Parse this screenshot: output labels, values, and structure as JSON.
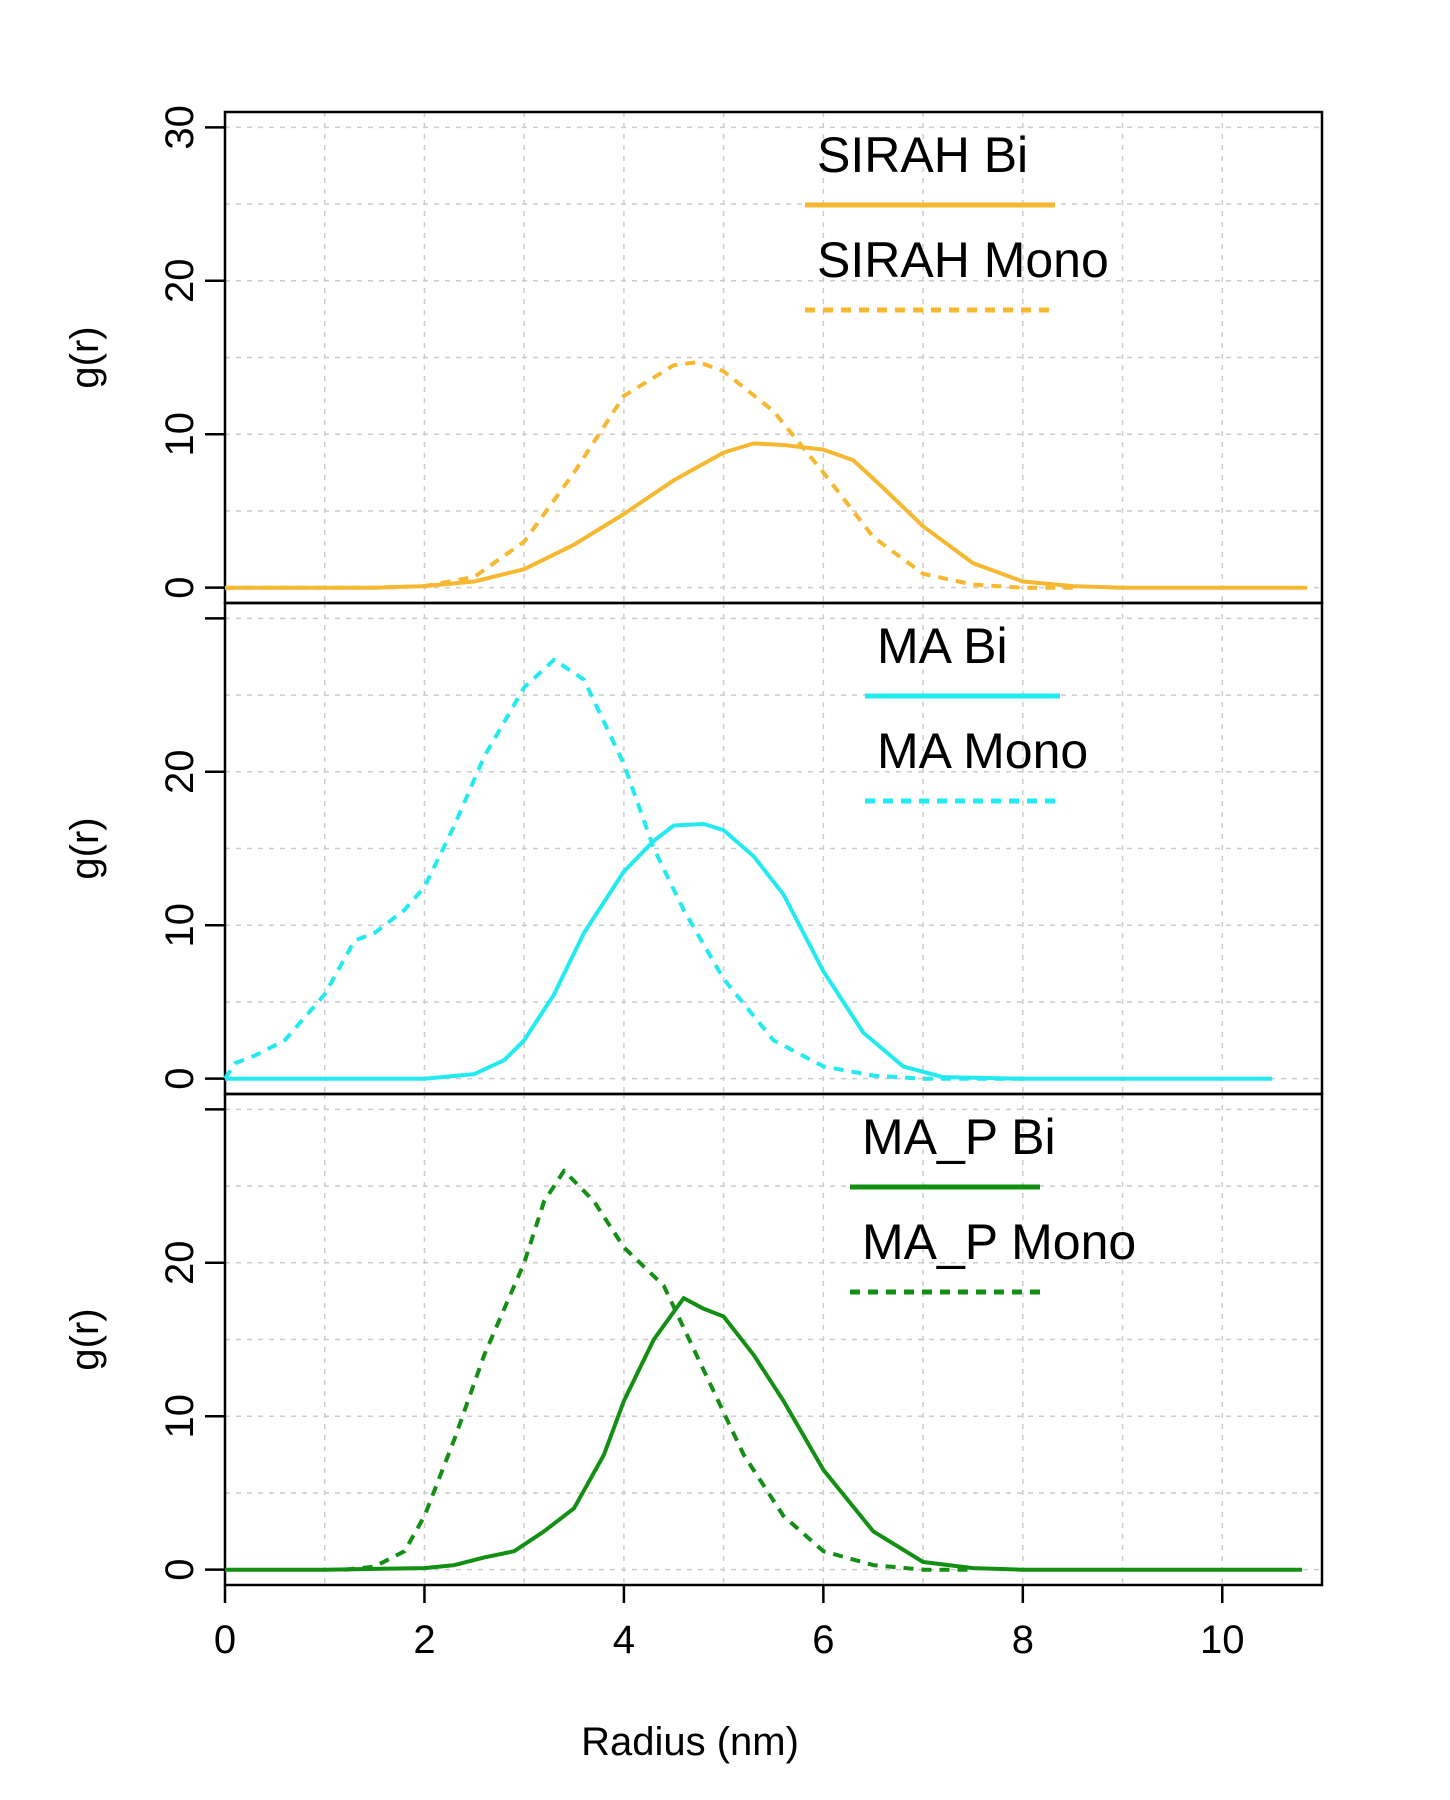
{
  "chart_data": [
    {
      "type": "line",
      "panel": "top",
      "xlabel": "",
      "ylabel": "g(r)",
      "xlim": [
        0,
        11
      ],
      "ylim": [
        -1,
        31
      ],
      "yticks": [
        0,
        10,
        20,
        30
      ],
      "ytick_labels": [
        "0",
        "10",
        "20",
        "30"
      ],
      "grid": true,
      "legend_position": "top-right",
      "series": [
        {
          "name": "SIRAH Bi",
          "color": "#f6b830",
          "style": "solid",
          "x": [
            0,
            1,
            1.5,
            2,
            2.5,
            3,
            3.5,
            4,
            4.5,
            5,
            5.3,
            5.6,
            6,
            6.3,
            6.6,
            7,
            7.5,
            8,
            8.5,
            9,
            10,
            10.85
          ],
          "y": [
            0,
            0,
            0,
            0.1,
            0.4,
            1.2,
            2.8,
            4.8,
            7,
            8.8,
            9.4,
            9.3,
            9,
            8.3,
            6.5,
            4,
            1.6,
            0.4,
            0.1,
            0,
            0,
            0
          ]
        },
        {
          "name": "SIRAH Mono",
          "color": "#f6b830",
          "style": "dashed",
          "x": [
            0,
            1.5,
            2,
            2.5,
            3,
            3.5,
            4,
            4.5,
            4.75,
            5,
            5.5,
            6,
            6.5,
            7,
            7.5,
            8,
            8.5
          ],
          "y": [
            0,
            0,
            0.1,
            0.7,
            3,
            7.5,
            12.5,
            14.5,
            14.7,
            14.1,
            11.5,
            7.5,
            3.3,
            0.9,
            0.2,
            0,
            0
          ]
        }
      ]
    },
    {
      "type": "line",
      "panel": "middle",
      "xlabel": "",
      "ylabel": "g(r)",
      "xlim": [
        0,
        11
      ],
      "ylim": [
        -1,
        31
      ],
      "yticks": [
        0,
        10,
        20
      ],
      "ytick_labels": [
        "0",
        "10",
        "20"
      ],
      "grid": true,
      "legend_position": "top-right",
      "series": [
        {
          "name": "MA Bi",
          "color": "#22eaf0",
          "style": "solid",
          "x": [
            0,
            1,
            2,
            2.5,
            2.8,
            3,
            3.3,
            3.6,
            4,
            4.3,
            4.5,
            4.8,
            5,
            5.3,
            5.6,
            6,
            6.4,
            6.8,
            7.2,
            8,
            9,
            10.5
          ],
          "y": [
            0,
            0,
            0,
            0.3,
            1.2,
            2.5,
            5.5,
            9.5,
            13.5,
            15.5,
            16.5,
            16.6,
            16.2,
            14.5,
            12,
            7,
            3,
            0.8,
            0.1,
            0,
            0,
            0
          ]
        },
        {
          "name": "MA Mono",
          "color": "#22eaf0",
          "style": "dashed",
          "x": [
            0,
            0.1,
            0.3,
            0.6,
            1,
            1.3,
            1.5,
            1.8,
            2,
            2.3,
            2.6,
            3,
            3.3,
            3.6,
            4,
            4.3,
            4.6,
            5,
            5.5,
            6,
            6.5,
            7,
            7.5,
            8
          ],
          "y": [
            0,
            1,
            1.5,
            2.5,
            5.5,
            9,
            9.5,
            11,
            12.5,
            16.5,
            21,
            25.5,
            27.3,
            26,
            20.5,
            15,
            11,
            6.5,
            2.5,
            0.8,
            0.2,
            0,
            0,
            0
          ]
        }
      ]
    },
    {
      "type": "line",
      "panel": "bottom",
      "xlabel": "Radius (nm)",
      "ylabel": "g(r)",
      "xlim": [
        0,
        11
      ],
      "ylim": [
        -1,
        31
      ],
      "yticks": [
        0,
        10,
        20
      ],
      "ytick_labels": [
        "0",
        "10",
        "20"
      ],
      "xticks": [
        0,
        2,
        4,
        6,
        8,
        10
      ],
      "xtick_labels": [
        "0",
        "2",
        "4",
        "6",
        "8",
        "10"
      ],
      "grid": true,
      "legend_position": "top-right",
      "series": [
        {
          "name": "MA_P Bi",
          "color": "#138f13",
          "style": "solid",
          "x": [
            0,
            1,
            2,
            2.3,
            2.6,
            2.9,
            3.2,
            3.5,
            3.8,
            4,
            4.3,
            4.6,
            4.8,
            5,
            5.3,
            5.6,
            6,
            6.5,
            7,
            7.5,
            8,
            9,
            10.8
          ],
          "y": [
            0,
            0,
            0.1,
            0.3,
            0.8,
            1.2,
            2.5,
            4,
            7.5,
            11,
            15,
            17.7,
            17,
            16.5,
            14,
            11,
            6.5,
            2.5,
            0.5,
            0.1,
            0,
            0,
            0
          ]
        },
        {
          "name": "MA_P Mono",
          "color": "#138f13",
          "style": "dashed",
          "x": [
            1.2,
            1.5,
            1.8,
            2,
            2.3,
            2.6,
            3,
            3.2,
            3.4,
            3.7,
            4,
            4.4,
            4.8,
            5.2,
            5.6,
            6,
            6.5,
            7,
            7.5
          ],
          "y": [
            0,
            0.2,
            1.2,
            3.5,
            8.5,
            14,
            20,
            24,
            26,
            24,
            21,
            18.5,
            13,
            7.5,
            3.5,
            1.2,
            0.3,
            0,
            0
          ]
        }
      ]
    }
  ]
}
